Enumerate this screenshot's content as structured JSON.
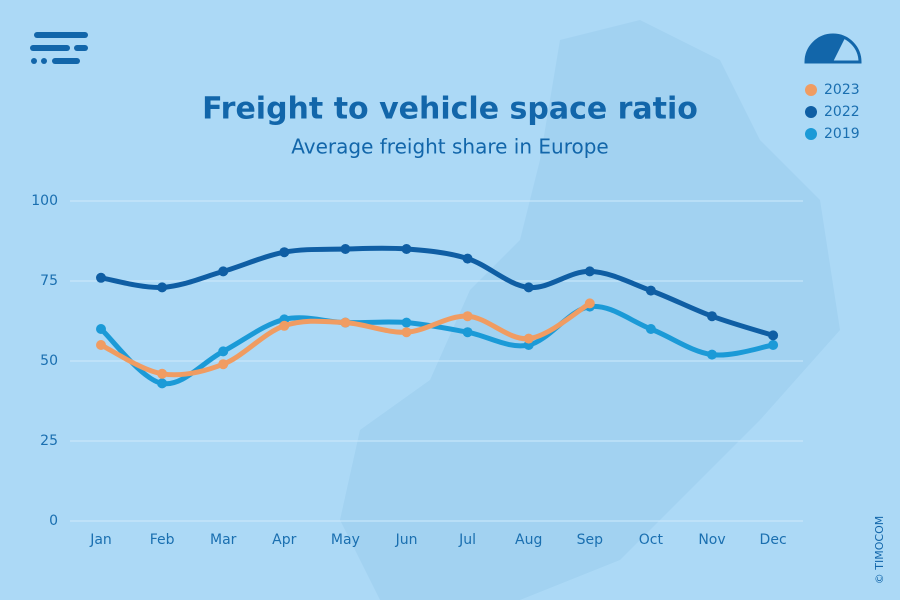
{
  "chart_data": {
    "type": "line",
    "title": "Freight to vehicle space ratio",
    "subtitle": "Average freight share in Europe",
    "copyright": "© TIMOCOM",
    "categories": [
      "Jan",
      "Feb",
      "Mar",
      "Apr",
      "May",
      "Jun",
      "Jul",
      "Aug",
      "Sep",
      "Oct",
      "Nov",
      "Dec"
    ],
    "series": [
      {
        "name": "2023",
        "color": "#f09c62",
        "values": [
          55,
          46,
          49,
          61,
          62,
          59,
          64,
          57,
          68,
          null,
          null,
          null
        ]
      },
      {
        "name": "2022",
        "color": "#0f5ea4",
        "values": [
          76,
          73,
          78,
          84,
          85,
          85,
          82,
          73,
          78,
          72,
          64,
          58
        ]
      },
      {
        "name": "2019",
        "color": "#1b9ad7",
        "values": [
          60,
          43,
          53,
          63,
          62,
          62,
          59,
          55,
          67,
          60,
          52,
          55
        ]
      }
    ],
    "ylim": [
      0,
      100
    ],
    "yticks": [
      0,
      25,
      50,
      75,
      100
    ],
    "grid": true,
    "legend": "top-right"
  }
}
